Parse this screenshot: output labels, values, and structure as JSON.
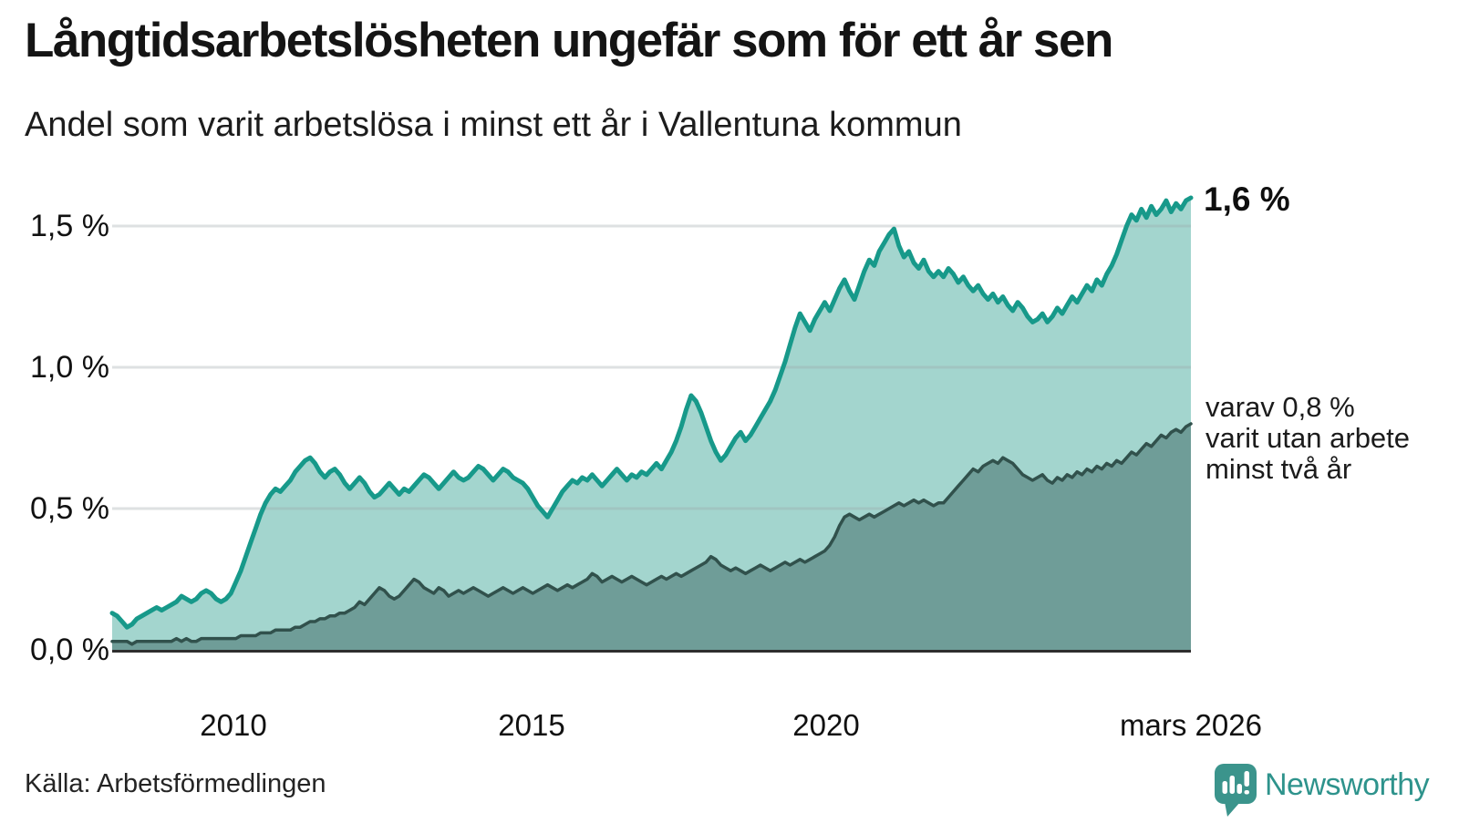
{
  "header": {
    "title": "Långtidsarbetslösheten ungefär som för ett år sen",
    "subtitle": "Andel som varit arbetslösa i minst ett år i Vallentuna kommun"
  },
  "annotations": {
    "end_label": "1,6 %",
    "note_lines": [
      "varav 0,8 %",
      "varit utan arbete",
      "minst två år"
    ]
  },
  "footer": {
    "source": "Källa: Arbetsförmedlingen",
    "brand": "Newsworthy"
  },
  "colors": {
    "line_upper": "#17998a",
    "fill_upper": "#a3d5ce",
    "line_lower": "#31514c",
    "fill_lower": "#6f9d98",
    "gridline": "#9aa4a6",
    "baseline": "#2e2e2e",
    "brand_teal": "#3b948c"
  },
  "chart_data": {
    "type": "area",
    "title": "Långtidsarbetslösheten ungefär som för ett år sen",
    "subtitle": "Andel som varit arbetslösa i minst ett år i Vallentuna kommun",
    "x_unit": "month",
    "start": "2008-01",
    "end": "2026-03",
    "ylim": [
      0,
      1.65
    ],
    "grid": true,
    "y_ticks": [
      {
        "label": "0,0 %",
        "value": 0.0
      },
      {
        "label": "0,5 %",
        "value": 0.5
      },
      {
        "label": "1,0 %",
        "value": 1.0
      },
      {
        "label": "1,5 %",
        "value": 1.5
      }
    ],
    "x_ticks": [
      {
        "label": "2010",
        "year": 2010
      },
      {
        "label": "2015",
        "year": 2015
      },
      {
        "label": "2020",
        "year": 2020
      },
      {
        "label": "mars 2026",
        "year": 2026.17
      }
    ],
    "series": [
      {
        "id": "unemployed_min_one_year",
        "end_label": "1,6 %",
        "end_value": 1.6,
        "color": "#17998a",
        "fill": "#a3d5ce",
        "values": [
          0.13,
          0.12,
          0.1,
          0.08,
          0.09,
          0.11,
          0.12,
          0.13,
          0.14,
          0.15,
          0.14,
          0.15,
          0.16,
          0.17,
          0.19,
          0.18,
          0.17,
          0.18,
          0.2,
          0.21,
          0.2,
          0.18,
          0.17,
          0.18,
          0.2,
          0.24,
          0.28,
          0.33,
          0.38,
          0.43,
          0.48,
          0.52,
          0.55,
          0.57,
          0.56,
          0.58,
          0.6,
          0.63,
          0.65,
          0.67,
          0.68,
          0.66,
          0.63,
          0.61,
          0.63,
          0.64,
          0.62,
          0.59,
          0.57,
          0.59,
          0.61,
          0.59,
          0.56,
          0.54,
          0.55,
          0.57,
          0.59,
          0.57,
          0.55,
          0.57,
          0.56,
          0.58,
          0.6,
          0.62,
          0.61,
          0.59,
          0.57,
          0.59,
          0.61,
          0.63,
          0.61,
          0.6,
          0.61,
          0.63,
          0.65,
          0.64,
          0.62,
          0.6,
          0.62,
          0.64,
          0.63,
          0.61,
          0.6,
          0.59,
          0.57,
          0.54,
          0.51,
          0.49,
          0.47,
          0.5,
          0.53,
          0.56,
          0.58,
          0.6,
          0.59,
          0.61,
          0.6,
          0.62,
          0.6,
          0.58,
          0.6,
          0.62,
          0.64,
          0.62,
          0.6,
          0.62,
          0.61,
          0.63,
          0.62,
          0.64,
          0.66,
          0.64,
          0.67,
          0.7,
          0.74,
          0.79,
          0.85,
          0.9,
          0.88,
          0.84,
          0.79,
          0.74,
          0.7,
          0.67,
          0.69,
          0.72,
          0.75,
          0.77,
          0.74,
          0.76,
          0.79,
          0.82,
          0.85,
          0.88,
          0.92,
          0.97,
          1.02,
          1.08,
          1.14,
          1.19,
          1.16,
          1.13,
          1.17,
          1.2,
          1.23,
          1.2,
          1.24,
          1.28,
          1.31,
          1.27,
          1.24,
          1.29,
          1.34,
          1.38,
          1.36,
          1.41,
          1.44,
          1.47,
          1.49,
          1.43,
          1.39,
          1.41,
          1.37,
          1.35,
          1.38,
          1.34,
          1.32,
          1.34,
          1.32,
          1.35,
          1.33,
          1.3,
          1.32,
          1.29,
          1.27,
          1.29,
          1.26,
          1.24,
          1.26,
          1.23,
          1.25,
          1.22,
          1.2,
          1.23,
          1.21,
          1.18,
          1.16,
          1.17,
          1.19,
          1.16,
          1.18,
          1.21,
          1.19,
          1.22,
          1.25,
          1.23,
          1.26,
          1.29,
          1.27,
          1.31,
          1.29,
          1.33,
          1.36,
          1.4,
          1.45,
          1.5,
          1.54,
          1.52,
          1.56,
          1.53,
          1.57,
          1.54,
          1.56,
          1.59,
          1.55,
          1.58,
          1.56,
          1.59,
          1.6
        ]
      },
      {
        "id": "unemployed_min_two_years",
        "end_label": "varav 0,8 % varit utan arbete minst två år",
        "end_value": 0.8,
        "color": "#31514c",
        "fill": "#6f9d98",
        "values": [
          0.03,
          0.03,
          0.03,
          0.03,
          0.02,
          0.03,
          0.03,
          0.03,
          0.03,
          0.03,
          0.03,
          0.03,
          0.03,
          0.04,
          0.03,
          0.04,
          0.03,
          0.03,
          0.04,
          0.04,
          0.04,
          0.04,
          0.04,
          0.04,
          0.04,
          0.04,
          0.05,
          0.05,
          0.05,
          0.05,
          0.06,
          0.06,
          0.06,
          0.07,
          0.07,
          0.07,
          0.07,
          0.08,
          0.08,
          0.09,
          0.1,
          0.1,
          0.11,
          0.11,
          0.12,
          0.12,
          0.13,
          0.13,
          0.14,
          0.15,
          0.17,
          0.16,
          0.18,
          0.2,
          0.22,
          0.21,
          0.19,
          0.18,
          0.19,
          0.21,
          0.23,
          0.25,
          0.24,
          0.22,
          0.21,
          0.2,
          0.22,
          0.21,
          0.19,
          0.2,
          0.21,
          0.2,
          0.21,
          0.22,
          0.21,
          0.2,
          0.19,
          0.2,
          0.21,
          0.22,
          0.21,
          0.2,
          0.21,
          0.22,
          0.21,
          0.2,
          0.21,
          0.22,
          0.23,
          0.22,
          0.21,
          0.22,
          0.23,
          0.22,
          0.23,
          0.24,
          0.25,
          0.27,
          0.26,
          0.24,
          0.25,
          0.26,
          0.25,
          0.24,
          0.25,
          0.26,
          0.25,
          0.24,
          0.23,
          0.24,
          0.25,
          0.26,
          0.25,
          0.26,
          0.27,
          0.26,
          0.27,
          0.28,
          0.29,
          0.3,
          0.31,
          0.33,
          0.32,
          0.3,
          0.29,
          0.28,
          0.29,
          0.28,
          0.27,
          0.28,
          0.29,
          0.3,
          0.29,
          0.28,
          0.29,
          0.3,
          0.31,
          0.3,
          0.31,
          0.32,
          0.31,
          0.32,
          0.33,
          0.34,
          0.35,
          0.37,
          0.4,
          0.44,
          0.47,
          0.48,
          0.47,
          0.46,
          0.47,
          0.48,
          0.47,
          0.48,
          0.49,
          0.5,
          0.51,
          0.52,
          0.51,
          0.52,
          0.53,
          0.52,
          0.53,
          0.52,
          0.51,
          0.52,
          0.52,
          0.54,
          0.56,
          0.58,
          0.6,
          0.62,
          0.64,
          0.63,
          0.65,
          0.66,
          0.67,
          0.66,
          0.68,
          0.67,
          0.66,
          0.64,
          0.62,
          0.61,
          0.6,
          0.61,
          0.62,
          0.6,
          0.59,
          0.61,
          0.6,
          0.62,
          0.61,
          0.63,
          0.62,
          0.64,
          0.63,
          0.65,
          0.64,
          0.66,
          0.65,
          0.67,
          0.66,
          0.68,
          0.7,
          0.69,
          0.71,
          0.73,
          0.72,
          0.74,
          0.76,
          0.75,
          0.77,
          0.78,
          0.77,
          0.79,
          0.8
        ]
      }
    ]
  }
}
